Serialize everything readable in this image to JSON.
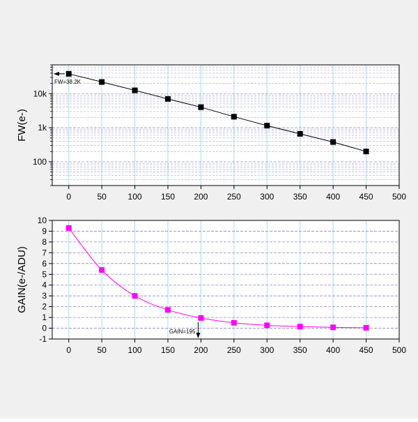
{
  "chart_data": [
    {
      "type": "line",
      "title": "",
      "xlabel": "",
      "ylabel": "FW(e-)",
      "yscale": "log",
      "xlim": [
        -25,
        500
      ],
      "ylim": [
        20,
        70000
      ],
      "x_ticks": [
        0,
        50,
        100,
        150,
        200,
        250,
        300,
        350,
        400,
        450,
        500
      ],
      "y_ticks": [
        {
          "value": 100,
          "label": "100"
        },
        {
          "value": 1000,
          "label": "1k"
        },
        {
          "value": 10000,
          "label": "10k"
        }
      ],
      "grid": true,
      "series": [
        {
          "name": "FW",
          "color": "#000000",
          "marker": "square",
          "x": [
            0,
            50,
            100,
            150,
            200,
            250,
            300,
            350,
            400,
            450
          ],
          "values": [
            38200,
            22000,
            12500,
            7000,
            4000,
            2100,
            1150,
            660,
            380,
            200
          ]
        }
      ],
      "annotation": {
        "text": "FW=38.2K",
        "x": 0,
        "y": 38200
      }
    },
    {
      "type": "line",
      "title": "",
      "xlabel": "",
      "ylabel": "GAIN(e-/ADU)",
      "xlim": [
        -25,
        500
      ],
      "ylim": [
        -1,
        10
      ],
      "x_ticks": [
        0,
        50,
        100,
        150,
        200,
        250,
        300,
        350,
        400,
        450,
        500
      ],
      "y_ticks": [
        -1,
        0,
        1,
        2,
        3,
        4,
        5,
        6,
        7,
        8,
        9,
        10
      ],
      "grid": true,
      "series": [
        {
          "name": "GAIN",
          "color": "#ff00ff",
          "marker": "square",
          "x": [
            0,
            50,
            100,
            150,
            200,
            250,
            300,
            350,
            400,
            450
          ],
          "values": [
            9.3,
            5.4,
            3.0,
            1.7,
            0.95,
            0.5,
            0.27,
            0.15,
            0.08,
            0.04
          ]
        }
      ],
      "annotation": {
        "text": "GAIN=195",
        "x": 200,
        "y": 0.95
      }
    }
  ]
}
